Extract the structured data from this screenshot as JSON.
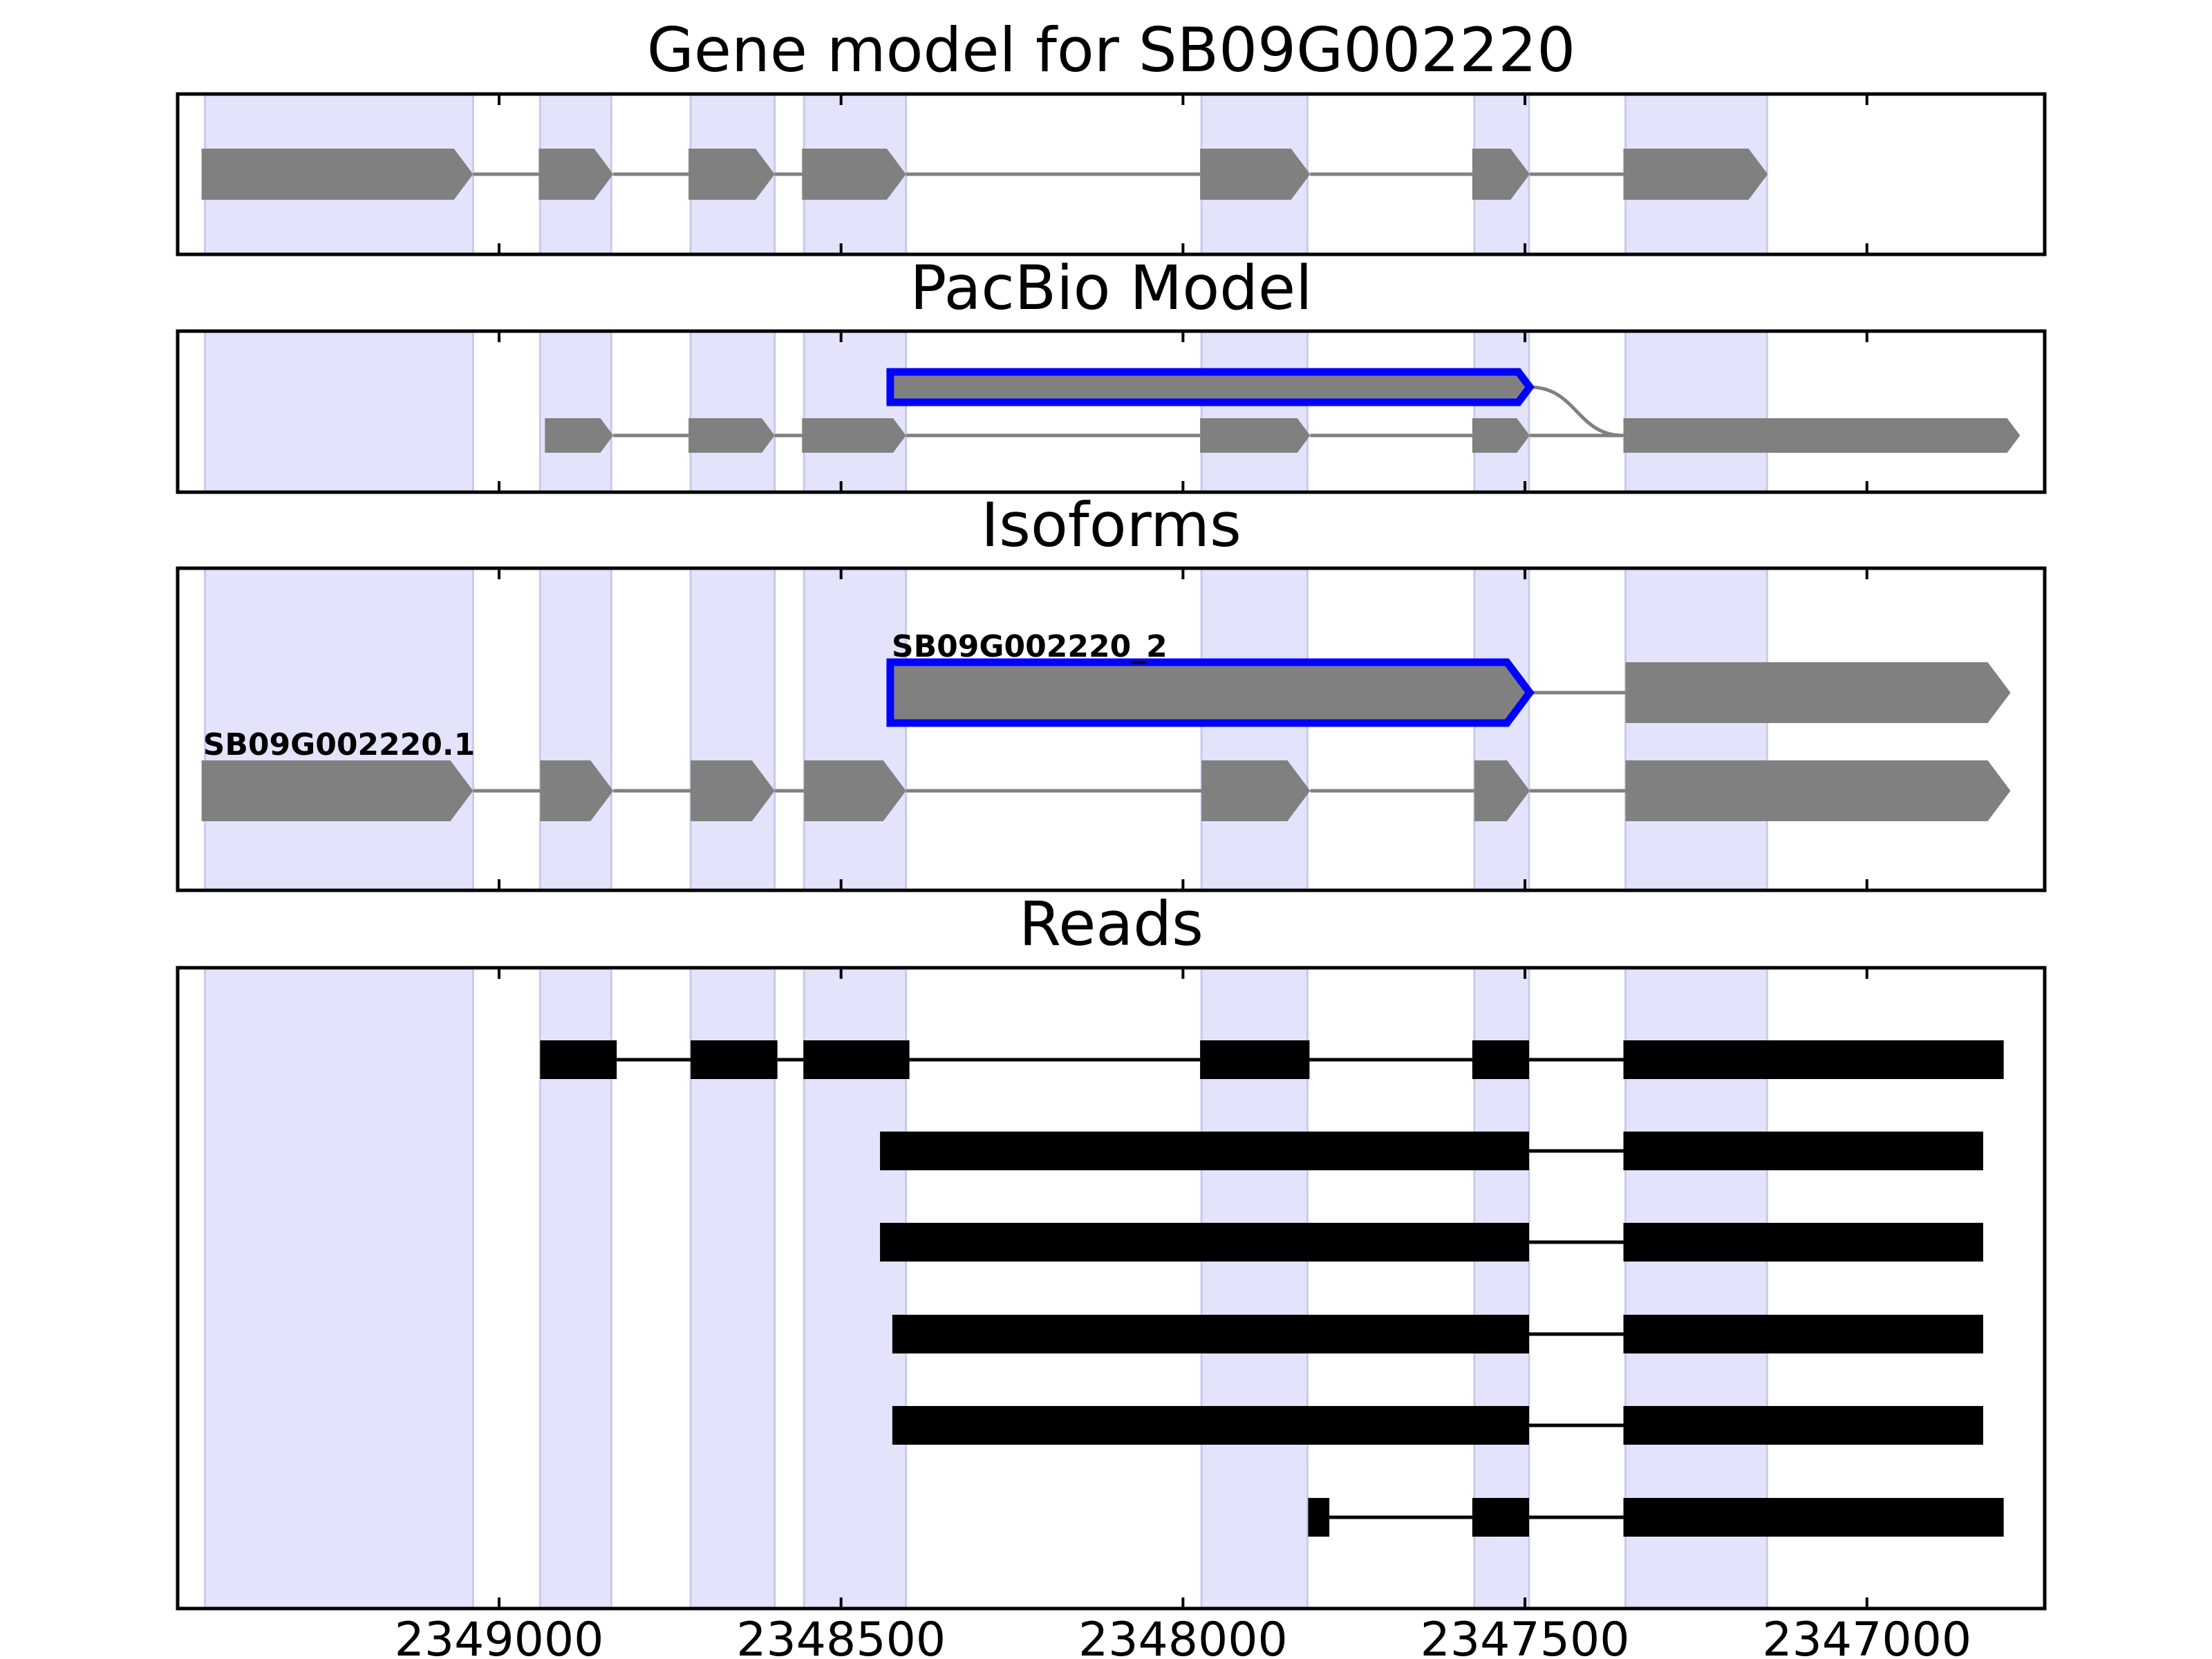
{
  "domain": "Diagram",
  "chart_data": {
    "type": "gene_model_tracks",
    "colors": {
      "exon_band": "#e3e3fb",
      "block": "#808080",
      "read": "#000000",
      "highlight": "#0000ff"
    },
    "axis": {
      "xlim": [
        2349470,
        2346740
      ],
      "reversed": true,
      "ticks": [
        {
          "value": 2349000,
          "label": "2349000"
        },
        {
          "value": 2348500,
          "label": "2348500"
        },
        {
          "value": 2348000,
          "label": "2348000"
        },
        {
          "value": 2347500,
          "label": "2347500"
        },
        {
          "value": 2347000,
          "label": "2347000"
        }
      ]
    },
    "exon_bands": [
      [
        2349430,
        2349038
      ],
      [
        2348940,
        2348836
      ],
      [
        2348720,
        2348597
      ],
      [
        2348554,
        2348405
      ],
      [
        2347973,
        2347818
      ],
      [
        2347574,
        2347494
      ],
      [
        2347353,
        2347146
      ]
    ],
    "panels": [
      {
        "title": "Gene model for SB09G002220",
        "tracks": [
          {
            "label": "",
            "highlight": false,
            "exons": [
              [
                2349435,
                2349038
              ],
              [
                2348942,
                2348833
              ],
              [
                2348723,
                2348597
              ],
              [
                2348557,
                2348405
              ],
              [
                2347975,
                2347814
              ],
              [
                2347577,
                2347493
              ],
              [
                2347356,
                2347145
              ]
            ]
          }
        ]
      },
      {
        "title": "PacBio Model",
        "tracks": [
          {
            "label": "",
            "highlight": true,
            "exons": [
              [
                2348428,
                2347493
              ],
              [
                2347356,
                2346776
              ]
            ]
          },
          {
            "label": "",
            "highlight": false,
            "exons": [
              [
                2348933,
                2348833
              ],
              [
                2348723,
                2348597
              ],
              [
                2348557,
                2348405
              ],
              [
                2347975,
                2347814
              ],
              [
                2347577,
                2347493
              ],
              [
                2347356,
                2346776
              ]
            ]
          }
        ]
      },
      {
        "title": "Isoforms",
        "tracks": [
          {
            "label": "SB09G002220_2",
            "highlight": true,
            "exons": [
              [
                2348428,
                2347493
              ],
              [
                2347353,
                2346790
              ]
            ]
          },
          {
            "label": "SB09G002220.1",
            "highlight": false,
            "exons": [
              [
                2349435,
                2349038
              ],
              [
                2348940,
                2348833
              ],
              [
                2348720,
                2348597
              ],
              [
                2348554,
                2348405
              ],
              [
                2347973,
                2347814
              ],
              [
                2347574,
                2347493
              ],
              [
                2347353,
                2346790
              ]
            ]
          }
        ]
      },
      {
        "title": "Reads",
        "tracks": [
          {
            "label": "",
            "highlight": false,
            "exons": [
              [
                2348940,
                2348828
              ],
              [
                2348720,
                2348593
              ],
              [
                2348555,
                2348400
              ],
              [
                2347975,
                2347815
              ],
              [
                2347577,
                2347494
              ],
              [
                2347356,
                2346800
              ]
            ]
          },
          {
            "label": "",
            "highlight": false,
            "exons": [
              [
                2348443,
                2347494
              ],
              [
                2347356,
                2346830
              ]
            ]
          },
          {
            "label": "",
            "highlight": false,
            "exons": [
              [
                2348443,
                2347494
              ],
              [
                2347356,
                2346830
              ]
            ]
          },
          {
            "label": "",
            "highlight": false,
            "exons": [
              [
                2348425,
                2347494
              ],
              [
                2347356,
                2346830
              ]
            ]
          },
          {
            "label": "",
            "highlight": false,
            "exons": [
              [
                2348425,
                2347494
              ],
              [
                2347356,
                2346830
              ]
            ]
          },
          {
            "label": "",
            "highlight": false,
            "exons": [
              [
                2347817,
                2347786
              ],
              [
                2347577,
                2347494
              ],
              [
                2347356,
                2346800
              ]
            ]
          }
        ]
      }
    ]
  }
}
